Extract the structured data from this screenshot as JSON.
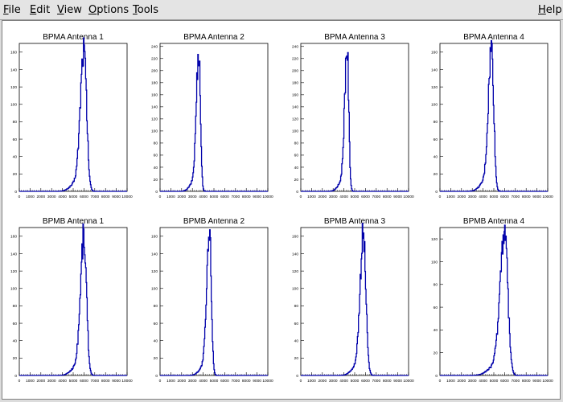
{
  "menubar": {
    "items": [
      {
        "label": "File",
        "mnemonic": "F",
        "rest": "ile"
      },
      {
        "label": "Edit",
        "mnemonic": "E",
        "rest": "dit"
      },
      {
        "label": "View",
        "mnemonic": "V",
        "rest": "iew"
      },
      {
        "label": "Options",
        "mnemonic": "O",
        "rest": "ptions"
      },
      {
        "label": "Tools",
        "mnemonic": "T",
        "rest": "ools"
      }
    ],
    "help": {
      "label": "Help",
      "mnemonic": "H",
      "rest": "elp"
    }
  },
  "chart_data": [
    {
      "type": "histogram",
      "title": "BPMA Antenna 1",
      "xlim": [
        0,
        10000
      ],
      "ylim": [
        0,
        170
      ],
      "x_ticks": [
        0,
        1000,
        2000,
        3000,
        4000,
        5000,
        6000,
        7000,
        8000,
        9000,
        10000
      ],
      "y_ticks": [
        0,
        20,
        40,
        60,
        80,
        100,
        120,
        140,
        160
      ],
      "peak_x": 6000,
      "peak_y": 160,
      "sigma_left": 330,
      "sigma_right": 250,
      "color": "#0000aa"
    },
    {
      "type": "histogram",
      "title": "BPMA Antenna 2",
      "xlim": [
        0,
        10000
      ],
      "ylim": [
        0,
        245
      ],
      "x_ticks": [
        0,
        1000,
        2000,
        3000,
        4000,
        5000,
        6000,
        7000,
        8000,
        9000,
        10000
      ],
      "y_ticks": [
        0,
        20,
        40,
        60,
        80,
        100,
        120,
        140,
        160,
        180,
        200,
        220,
        240
      ],
      "peak_x": 3600,
      "peak_y": 230,
      "sigma_left": 230,
      "sigma_right": 150,
      "color": "#0000aa"
    },
    {
      "type": "histogram",
      "title": "BPMA Antenna 3",
      "xlim": [
        0,
        10000
      ],
      "ylim": [
        0,
        245
      ],
      "x_ticks": [
        0,
        1000,
        2000,
        3000,
        4000,
        5000,
        6000,
        7000,
        8000,
        9000,
        10000
      ],
      "y_ticks": [
        0,
        20,
        40,
        60,
        80,
        100,
        120,
        140,
        160,
        180,
        200,
        220,
        240
      ],
      "peak_x": 4300,
      "peak_y": 235,
      "sigma_left": 230,
      "sigma_right": 150,
      "color": "#0000aa"
    },
    {
      "type": "histogram",
      "title": "BPMA Antenna 4",
      "xlim": [
        0,
        10000
      ],
      "ylim": [
        0,
        170
      ],
      "x_ticks": [
        0,
        1000,
        2000,
        3000,
        4000,
        5000,
        6000,
        7000,
        8000,
        9000,
        10000
      ],
      "y_ticks": [
        0,
        20,
        40,
        60,
        80,
        100,
        120,
        140,
        160
      ],
      "peak_x": 4800,
      "peak_y": 162,
      "sigma_left": 300,
      "sigma_right": 200,
      "color": "#0000aa"
    },
    {
      "type": "histogram",
      "title": "BPMB Antenna 1",
      "xlim": [
        0,
        10000
      ],
      "ylim": [
        0,
        170
      ],
      "x_ticks": [
        0,
        1000,
        2000,
        3000,
        4000,
        5000,
        6000,
        7000,
        8000,
        9000,
        10000
      ],
      "y_ticks": [
        0,
        20,
        40,
        60,
        80,
        100,
        120,
        140,
        160
      ],
      "peak_x": 6000,
      "peak_y": 158,
      "sigma_left": 320,
      "sigma_right": 240,
      "color": "#0000aa"
    },
    {
      "type": "histogram",
      "title": "BPMB Antenna 2",
      "xlim": [
        0,
        10000
      ],
      "ylim": [
        0,
        170
      ],
      "x_ticks": [
        0,
        1000,
        2000,
        3000,
        4000,
        5000,
        6000,
        7000,
        8000,
        9000,
        10000
      ],
      "y_ticks": [
        0,
        20,
        40,
        60,
        80,
        100,
        120,
        140,
        160
      ],
      "peak_x": 4600,
      "peak_y": 160,
      "sigma_left": 260,
      "sigma_right": 170,
      "color": "#0000aa"
    },
    {
      "type": "histogram",
      "title": "BPMB Antenna 3",
      "xlim": [
        0,
        10000
      ],
      "ylim": [
        0,
        170
      ],
      "x_ticks": [
        0,
        1000,
        2000,
        3000,
        4000,
        5000,
        6000,
        7000,
        8000,
        9000,
        10000
      ],
      "y_ticks": [
        0,
        20,
        40,
        60,
        80,
        100,
        120,
        140,
        160
      ],
      "peak_x": 5800,
      "peak_y": 158,
      "sigma_left": 300,
      "sigma_right": 240,
      "color": "#0000aa"
    },
    {
      "type": "histogram",
      "title": "BPMB Antenna 4",
      "xlim": [
        0,
        10000
      ],
      "ylim": [
        0,
        130
      ],
      "x_ticks": [
        0,
        1000,
        2000,
        3000,
        4000,
        5000,
        6000,
        7000,
        8000,
        9000,
        10000
      ],
      "y_ticks": [
        0,
        20,
        40,
        60,
        80,
        100,
        120
      ],
      "peak_x": 6000,
      "peak_y": 124,
      "sigma_left": 420,
      "sigma_right": 300,
      "color": "#0000aa"
    }
  ]
}
